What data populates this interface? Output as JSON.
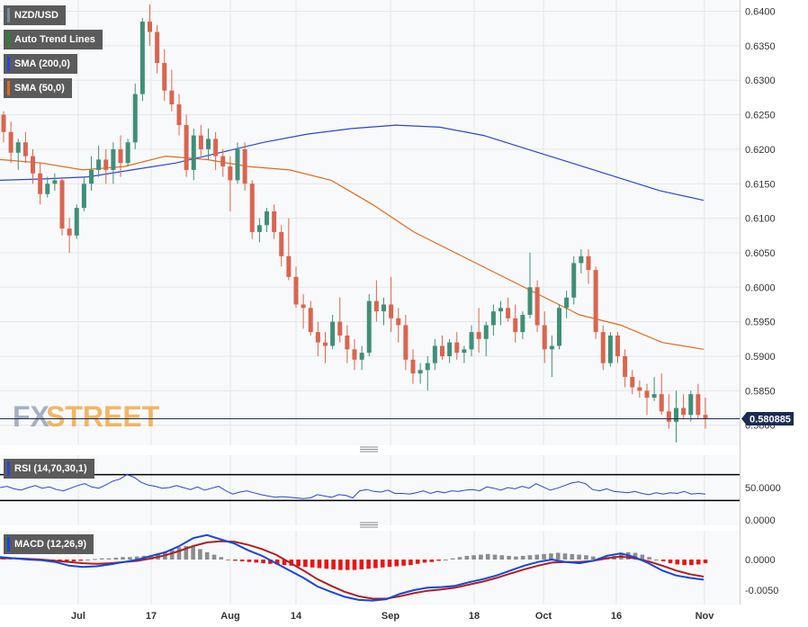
{
  "colors": {
    "up": "#3f8f79",
    "down": "#d9654f",
    "sma200": "#2a45d6",
    "sma50": "#e06a1b",
    "trend": "#1e8a2e",
    "rsi": "#2a45d6",
    "macd_line": "#1446e0",
    "signal_line": "#b01f1f",
    "hist_pos": "#8c8c8c",
    "hist_neg": "#ee1111",
    "price_tag": "#1b2b55",
    "watermark": "#f0a032"
  },
  "legend": {
    "symbol": "NZD/USD",
    "trend": "Auto Trend Lines",
    "sma200": "SMA (200,0)",
    "sma50": "SMA (50,0)",
    "rsi": "RSI (14,70,30,1)",
    "macd": "MACD (12,26,9)"
  },
  "watermark": {
    "fx": "FX",
    "street": "STREET"
  },
  "price_tag": "0.580885",
  "chart_data": [
    {
      "type": "candlestick",
      "title": "NZD/USD",
      "ylim": [
        0.577,
        0.6415
      ],
      "yticks": [
        "0.6400",
        "0.6350",
        "0.6300",
        "0.6250",
        "0.6200",
        "0.6150",
        "0.6100",
        "0.6050",
        "0.6000",
        "0.5950",
        "0.5900",
        "0.5850",
        "0.5800"
      ],
      "xlabels": [
        "Jul",
        "17",
        "Aug",
        "14",
        "Sep",
        "18",
        "Oct",
        "16",
        "Nov"
      ],
      "last_price": 0.580885,
      "candles": [
        [
          0.625,
          0.6255,
          0.621,
          0.6225
        ],
        [
          0.6225,
          0.624,
          0.618,
          0.6195
        ],
        [
          0.6195,
          0.6215,
          0.617,
          0.621
        ],
        [
          0.621,
          0.6225,
          0.618,
          0.619
        ],
        [
          0.619,
          0.62,
          0.615,
          0.6165
        ],
        [
          0.6165,
          0.618,
          0.612,
          0.6135
        ],
        [
          0.6135,
          0.616,
          0.613,
          0.615
        ],
        [
          0.615,
          0.6165,
          0.614,
          0.6155
        ],
        [
          0.6155,
          0.616,
          0.6075,
          0.6085
        ],
        [
          0.6085,
          0.61,
          0.605,
          0.6075
        ],
        [
          0.6075,
          0.612,
          0.607,
          0.6115
        ],
        [
          0.6115,
          0.616,
          0.611,
          0.615
        ],
        [
          0.615,
          0.619,
          0.614,
          0.617
        ],
        [
          0.617,
          0.6205,
          0.616,
          0.6185
        ],
        [
          0.6185,
          0.62,
          0.615,
          0.617
        ],
        [
          0.617,
          0.621,
          0.615,
          0.62
        ],
        [
          0.62,
          0.622,
          0.616,
          0.618
        ],
        [
          0.618,
          0.6215,
          0.6175,
          0.621
        ],
        [
          0.621,
          0.6295,
          0.62,
          0.628
        ],
        [
          0.628,
          0.639,
          0.627,
          0.6385
        ],
        [
          0.6385,
          0.641,
          0.635,
          0.637
        ],
        [
          0.637,
          0.638,
          0.631,
          0.6325
        ],
        [
          0.6325,
          0.6345,
          0.627,
          0.6285
        ],
        [
          0.6285,
          0.6315,
          0.6255,
          0.6265
        ],
        [
          0.6265,
          0.628,
          0.622,
          0.6235
        ],
        [
          0.6235,
          0.625,
          0.616,
          0.617
        ],
        [
          0.617,
          0.623,
          0.6155,
          0.622
        ],
        [
          0.622,
          0.6235,
          0.619,
          0.62
        ],
        [
          0.62,
          0.623,
          0.6185,
          0.6215
        ],
        [
          0.6215,
          0.6225,
          0.617,
          0.619
        ],
        [
          0.619,
          0.62,
          0.616,
          0.6175
        ],
        [
          0.6175,
          0.619,
          0.611,
          0.6155
        ],
        [
          0.6155,
          0.621,
          0.615,
          0.62
        ],
        [
          0.62,
          0.621,
          0.614,
          0.615
        ],
        [
          0.615,
          0.6155,
          0.607,
          0.608
        ],
        [
          0.608,
          0.61,
          0.6065,
          0.609
        ],
        [
          0.609,
          0.6115,
          0.608,
          0.611
        ],
        [
          0.611,
          0.612,
          0.607,
          0.608
        ],
        [
          0.608,
          0.609,
          0.603,
          0.6045
        ],
        [
          0.6045,
          0.61,
          0.601,
          0.6015
        ],
        [
          0.6015,
          0.603,
          0.597,
          0.5975
        ],
        [
          0.5975,
          0.599,
          0.594,
          0.597
        ],
        [
          0.597,
          0.598,
          0.593,
          0.5935
        ],
        [
          0.5935,
          0.595,
          0.59,
          0.592
        ],
        [
          0.592,
          0.5935,
          0.589,
          0.5915
        ],
        [
          0.5915,
          0.596,
          0.591,
          0.595
        ],
        [
          0.595,
          0.5985,
          0.592,
          0.593
        ],
        [
          0.593,
          0.5945,
          0.589,
          0.591
        ],
        [
          0.591,
          0.5925,
          0.588,
          0.5895
        ],
        [
          0.5895,
          0.5915,
          0.588,
          0.5905
        ],
        [
          0.5905,
          0.599,
          0.59,
          0.598
        ],
        [
          0.598,
          0.601,
          0.595,
          0.5965
        ],
        [
          0.5965,
          0.5985,
          0.5945,
          0.5975
        ],
        [
          0.5975,
          0.6015,
          0.5935,
          0.5955
        ],
        [
          0.5955,
          0.597,
          0.592,
          0.5945
        ],
        [
          0.5945,
          0.596,
          0.588,
          0.5895
        ],
        [
          0.5895,
          0.591,
          0.586,
          0.5875
        ],
        [
          0.5875,
          0.589,
          0.586,
          0.588
        ],
        [
          0.588,
          0.59,
          0.585,
          0.589
        ],
        [
          0.589,
          0.5925,
          0.588,
          0.5915
        ],
        [
          0.5915,
          0.593,
          0.5895,
          0.59
        ],
        [
          0.59,
          0.5925,
          0.589,
          0.592
        ],
        [
          0.592,
          0.5935,
          0.5895,
          0.5905
        ],
        [
          0.5905,
          0.5915,
          0.589,
          0.591
        ],
        [
          0.591,
          0.5945,
          0.59,
          0.5935
        ],
        [
          0.5935,
          0.597,
          0.5905,
          0.5925
        ],
        [
          0.5925,
          0.595,
          0.59,
          0.5945
        ],
        [
          0.5945,
          0.5975,
          0.593,
          0.5965
        ],
        [
          0.5965,
          0.598,
          0.5945,
          0.597
        ],
        [
          0.597,
          0.5985,
          0.595,
          0.5955
        ],
        [
          0.5955,
          0.5975,
          0.592,
          0.5935
        ],
        [
          0.5935,
          0.5965,
          0.5925,
          0.596
        ],
        [
          0.596,
          0.605,
          0.5955,
          0.6
        ],
        [
          0.6,
          0.601,
          0.5935,
          0.5945
        ],
        [
          0.5945,
          0.5965,
          0.589,
          0.591
        ],
        [
          0.591,
          0.593,
          0.587,
          0.5915
        ],
        [
          0.5915,
          0.5975,
          0.591,
          0.597
        ],
        [
          0.597,
          0.5995,
          0.5955,
          0.5985
        ],
        [
          0.5985,
          0.6045,
          0.5975,
          0.6035
        ],
        [
          0.6035,
          0.6055,
          0.602,
          0.6045
        ],
        [
          0.6045,
          0.6055,
          0.6005,
          0.6025
        ],
        [
          0.6025,
          0.603,
          0.5925,
          0.5935
        ],
        [
          0.5935,
          0.5945,
          0.588,
          0.589
        ],
        [
          0.589,
          0.5935,
          0.5885,
          0.593
        ],
        [
          0.593,
          0.5935,
          0.589,
          0.59
        ],
        [
          0.59,
          0.591,
          0.5855,
          0.587
        ],
        [
          0.587,
          0.588,
          0.5845,
          0.5855
        ],
        [
          0.5855,
          0.5865,
          0.584,
          0.585
        ],
        [
          0.585,
          0.586,
          0.5815,
          0.584
        ],
        [
          0.584,
          0.587,
          0.5835,
          0.5845
        ],
        [
          0.5845,
          0.5875,
          0.5815,
          0.582
        ],
        [
          0.582,
          0.5845,
          0.5795,
          0.5805
        ],
        [
          0.5805,
          0.585,
          0.5775,
          0.5825
        ],
        [
          0.5825,
          0.5845,
          0.581,
          0.5815
        ],
        [
          0.5815,
          0.585,
          0.5805,
          0.5845
        ],
        [
          0.5845,
          0.586,
          0.581,
          0.5815
        ],
        [
          0.5815,
          0.584,
          0.5795,
          0.5809
        ]
      ],
      "sma200": [
        0.6155,
        0.6157,
        0.616,
        0.617,
        0.618,
        0.6195,
        0.621,
        0.6222,
        0.623,
        0.6235,
        0.6232,
        0.622,
        0.62,
        0.618,
        0.616,
        0.614,
        0.6126
      ],
      "sma50": [
        0.6185,
        0.618,
        0.617,
        0.6175,
        0.619,
        0.6185,
        0.6175,
        0.617,
        0.6155,
        0.612,
        0.608,
        0.605,
        0.602,
        0.599,
        0.596,
        0.5945,
        0.592,
        0.591
      ]
    },
    {
      "type": "line",
      "title": "RSI (14,70,30,1)",
      "yticks": [
        "50.0000",
        "0.0000"
      ],
      "values": [
        50,
        52,
        48,
        46,
        50,
        53,
        49,
        51,
        47,
        45,
        49,
        53,
        56,
        51,
        49,
        54,
        60,
        63,
        70,
        66,
        58,
        54,
        52,
        49,
        50,
        53,
        50,
        47,
        51,
        46,
        49,
        52,
        45,
        40,
        43,
        45,
        42,
        39,
        37,
        35,
        36,
        35,
        34,
        33,
        34,
        39,
        37,
        35,
        39,
        38,
        34,
        45,
        47,
        44,
        43,
        46,
        41,
        41,
        40,
        42,
        45,
        41,
        44,
        42,
        45,
        44,
        46,
        47,
        45,
        51,
        49,
        46,
        50,
        48,
        52,
        49,
        56,
        51,
        46,
        49,
        53,
        57,
        59,
        56,
        47,
        45,
        48,
        44,
        43,
        42,
        44,
        41,
        39,
        42,
        40,
        42,
        41,
        44,
        40,
        41,
        40
      ]
    },
    {
      "type": "bar",
      "title": "MACD (12,26,9)",
      "yticks": [
        "0.0000",
        "-0.0050"
      ],
      "macd": [
        0.0004,
        0.0002,
        0.0,
        -0.0001,
        -0.0004,
        -0.001,
        -0.0012,
        -0.0011,
        -0.0008,
        -0.0004,
        0.0,
        0.0006,
        0.0012,
        0.0022,
        0.0035,
        0.004,
        0.0033,
        0.0026,
        0.0015,
        0.0006,
        -0.0006,
        -0.0018,
        -0.003,
        -0.0044,
        -0.0053,
        -0.0061,
        -0.0066,
        -0.0067,
        -0.0065,
        -0.0056,
        -0.005,
        -0.0046,
        -0.0045,
        -0.0043,
        -0.0037,
        -0.0032,
        -0.0026,
        -0.0018,
        -0.001,
        -0.0004,
        0.0,
        -0.0004,
        -0.0006,
        -0.0002,
        0.0006,
        0.001,
        0.0004,
        -0.0006,
        -0.0018,
        -0.0026,
        -0.003,
        -0.0033
      ],
      "signal": [
        0.0002,
        0.0002,
        0.0001,
        0.0,
        -0.0002,
        -0.0004,
        -0.0006,
        -0.0007,
        -0.0006,
        -0.0004,
        -0.0002,
        0.0002,
        0.0007,
        0.0014,
        0.0022,
        0.0028,
        0.003,
        0.0029,
        0.0024,
        0.0017,
        0.0008,
        -0.0005,
        -0.0018,
        -0.0032,
        -0.0043,
        -0.0053,
        -0.006,
        -0.0064,
        -0.0064,
        -0.006,
        -0.0055,
        -0.0051,
        -0.0049,
        -0.0046,
        -0.0041,
        -0.0036,
        -0.003,
        -0.0023,
        -0.0016,
        -0.001,
        -0.0005,
        -0.0004,
        -0.0004,
        -0.0002,
        0.0002,
        0.0005,
        0.0002,
        -0.0003,
        -0.001,
        -0.0018,
        -0.0024,
        -0.0028
      ],
      "histogram": [
        0.0003,
        0.0002,
        0.0002,
        0.0001,
        0.0,
        -0.0001,
        -0.0002,
        -0.0002,
        -0.0003,
        -0.0004,
        -0.0003,
        -0.0002,
        0.0,
        0.0001,
        0.0002,
        0.0002,
        0.0003,
        0.0004,
        0.0004,
        0.0005,
        0.0006,
        0.0007,
        0.001,
        0.0013,
        0.0016,
        0.002,
        0.0022,
        0.0021,
        0.0017,
        0.0012,
        0.0008,
        0.0004,
        0.0,
        -0.0002,
        -0.0003,
        -0.0004,
        -0.0005,
        -0.0006,
        -0.0007,
        -0.0008,
        -0.0009,
        -0.001,
        -0.0011,
        -0.0012,
        -0.0013,
        -0.0014,
        -0.0015,
        -0.0016,
        -0.0017,
        -0.0017,
        -0.0017,
        -0.0016,
        -0.0015,
        -0.0014,
        -0.0013,
        -0.0012,
        -0.0011,
        -0.001,
        -0.0009,
        -0.0007,
        -0.0005,
        -0.0004,
        -0.0002,
        0.0,
        0.0002,
        0.0004,
        0.0006,
        0.0007,
        0.0008,
        0.0009,
        0.0008,
        0.0007,
        0.0006,
        0.0005,
        0.0006,
        0.0007,
        0.0008,
        0.0009,
        0.001,
        0.0011,
        0.001,
        0.0009,
        0.0008,
        0.0007,
        0.0005,
        0.0003,
        0.0004,
        0.0006,
        0.0009,
        0.0012,
        0.0011,
        0.0008,
        0.0004,
        0.0,
        -0.0003,
        -0.0006,
        -0.0008,
        -0.0009,
        -0.0009,
        -0.0008,
        -0.0006
      ]
    }
  ]
}
